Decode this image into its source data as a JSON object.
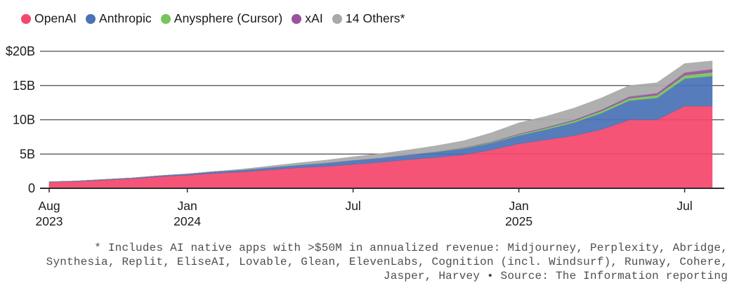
{
  "legend": {
    "position": "top-left"
  },
  "footnote": {
    "lines": [
      "* Includes AI native apps with >$50M in annualized revenue: Midjourney, Perplexity, Abridge,",
      "Synthesia, Replit, EliseAI, Lovable, Glean, ElevenLabs, Cognition (incl. Windsurf), Runway, Cohere,",
      "Jasper, Harvey • Source: The Information reporting"
    ]
  },
  "chart_data": {
    "type": "area",
    "stacked": true,
    "value_unit": "$B (annualized revenue)",
    "ylim": [
      0,
      20
    ],
    "grid": "horizontal",
    "legend_position": "top-left",
    "x_months": [
      "Aug 2023",
      "Sep 2023",
      "Oct 2023",
      "Nov 2023",
      "Dec 2023",
      "Jan 2024",
      "Feb 2024",
      "Mar 2024",
      "Apr 2024",
      "May 2024",
      "Jun 2024",
      "Jul 2024",
      "Aug 2024",
      "Sep 2024",
      "Oct 2024",
      "Nov 2024",
      "Dec 2024",
      "Jan 2025",
      "Feb 2025",
      "Mar 2025",
      "Apr 2025",
      "May 2025",
      "Jun 2025",
      "Jul 2025",
      "Aug 2025"
    ],
    "series": [
      {
        "name": "OpenAI",
        "color": "#F4476C",
        "values": [
          0.9,
          1.0,
          1.2,
          1.4,
          1.7,
          1.9,
          2.2,
          2.4,
          2.7,
          3.0,
          3.2,
          3.5,
          3.8,
          4.2,
          4.5,
          4.9,
          5.6,
          6.5,
          7.1,
          7.7,
          8.6,
          10.0,
          10.0,
          12.0,
          12.0
        ]
      },
      {
        "name": "Anthropic",
        "color": "#4A72B6",
        "values": [
          0.05,
          0.08,
          0.1,
          0.12,
          0.15,
          0.2,
          0.25,
          0.3,
          0.35,
          0.4,
          0.5,
          0.6,
          0.65,
          0.7,
          0.8,
          0.9,
          1.0,
          1.2,
          1.5,
          1.9,
          2.4,
          2.8,
          3.2,
          4.0,
          4.4
        ]
      },
      {
        "name": "Anysphere (Cursor)",
        "color": "#77C35F",
        "values": [
          0,
          0,
          0,
          0,
          0,
          0,
          0,
          0,
          0,
          0,
          0,
          0,
          0,
          0,
          0.05,
          0.08,
          0.1,
          0.15,
          0.2,
          0.25,
          0.3,
          0.35,
          0.4,
          0.5,
          0.55
        ]
      },
      {
        "name": "xAI",
        "color": "#9B51A0",
        "values": [
          0,
          0,
          0,
          0,
          0,
          0,
          0,
          0,
          0,
          0,
          0,
          0,
          0,
          0,
          0,
          0.05,
          0.08,
          0.1,
          0.12,
          0.15,
          0.2,
          0.25,
          0.3,
          0.4,
          0.45
        ]
      },
      {
        "name": "14 Others*",
        "color": "#A9A9A9",
        "values": [
          0,
          0,
          0,
          0,
          0,
          0,
          0,
          0.1,
          0.2,
          0.3,
          0.4,
          0.5,
          0.6,
          0.7,
          0.85,
          1.0,
          1.3,
          1.6,
          1.6,
          1.7,
          1.7,
          1.6,
          1.5,
          1.3,
          1.2
        ]
      }
    ],
    "yticks": [
      {
        "value": 20,
        "label": "$20B"
      },
      {
        "value": 15,
        "label": "15B"
      },
      {
        "value": 10,
        "label": "10B"
      },
      {
        "value": 5,
        "label": "5B"
      },
      {
        "value": 0,
        "label": "0"
      }
    ],
    "xticks": [
      {
        "month_index": 0,
        "line1": "Aug",
        "line2": "2023"
      },
      {
        "month_index": 5,
        "line1": "Jan",
        "line2": "2024"
      },
      {
        "month_index": 11,
        "line1": "Jul",
        "line2": ""
      },
      {
        "month_index": 17,
        "line1": "Jan",
        "line2": "2025"
      },
      {
        "month_index": 23,
        "line1": "Jul",
        "line2": ""
      }
    ]
  }
}
